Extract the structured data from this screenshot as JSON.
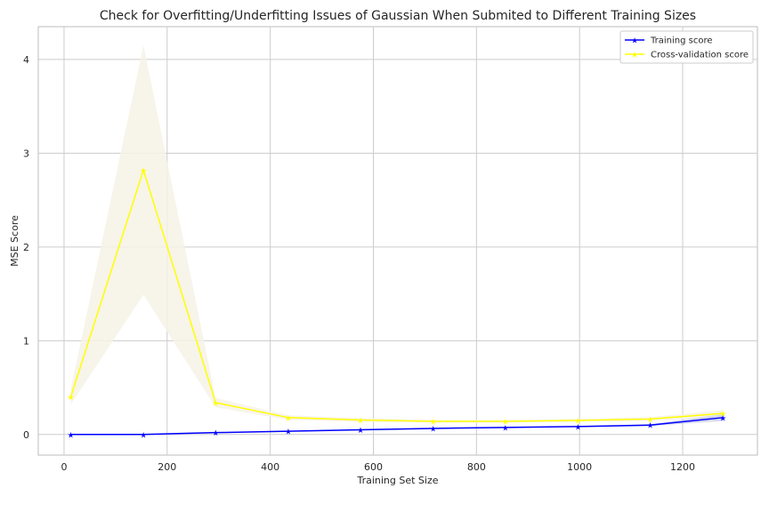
{
  "chart_data": {
    "type": "line",
    "title": "Check for Overfitting/Underfitting Issues of Gaussian When Submited to Different Training Sizes",
    "xlabel": "Training Set Size",
    "ylabel": "MSE Score",
    "xlim": [
      -50,
      1345
    ],
    "ylim": [
      -0.22,
      4.35
    ],
    "xticks": [
      0,
      200,
      400,
      600,
      800,
      1000,
      1200
    ],
    "yticks": [
      0,
      1,
      2,
      3,
      4
    ],
    "grid": true,
    "legend_position": "top-right",
    "x": [
      13,
      154,
      294,
      435,
      575,
      716,
      856,
      997,
      1137,
      1278
    ],
    "series": [
      {
        "name": "Training score",
        "color": "#0000ff",
        "band_color": "#cfd0ea",
        "values": [
          0.0,
          0.0,
          0.02,
          0.035,
          0.05,
          0.065,
          0.075,
          0.085,
          0.1,
          0.18
        ],
        "lower": [
          0.0,
          0.0,
          0.015,
          0.03,
          0.045,
          0.06,
          0.07,
          0.08,
          0.09,
          0.145
        ],
        "upper": [
          0.0,
          0.0,
          0.025,
          0.04,
          0.055,
          0.07,
          0.08,
          0.09,
          0.11,
          0.215
        ]
      },
      {
        "name": "Cross-validation score",
        "color": "#ffff00",
        "band_color": "#f6f2e6",
        "values": [
          0.4,
          2.82,
          0.34,
          0.18,
          0.155,
          0.14,
          0.14,
          0.15,
          0.165,
          0.225
        ],
        "lower": [
          0.32,
          1.49,
          0.29,
          0.155,
          0.135,
          0.125,
          0.125,
          0.135,
          0.145,
          0.19
        ],
        "upper": [
          0.48,
          4.15,
          0.39,
          0.205,
          0.175,
          0.155,
          0.155,
          0.165,
          0.185,
          0.26
        ]
      }
    ]
  }
}
